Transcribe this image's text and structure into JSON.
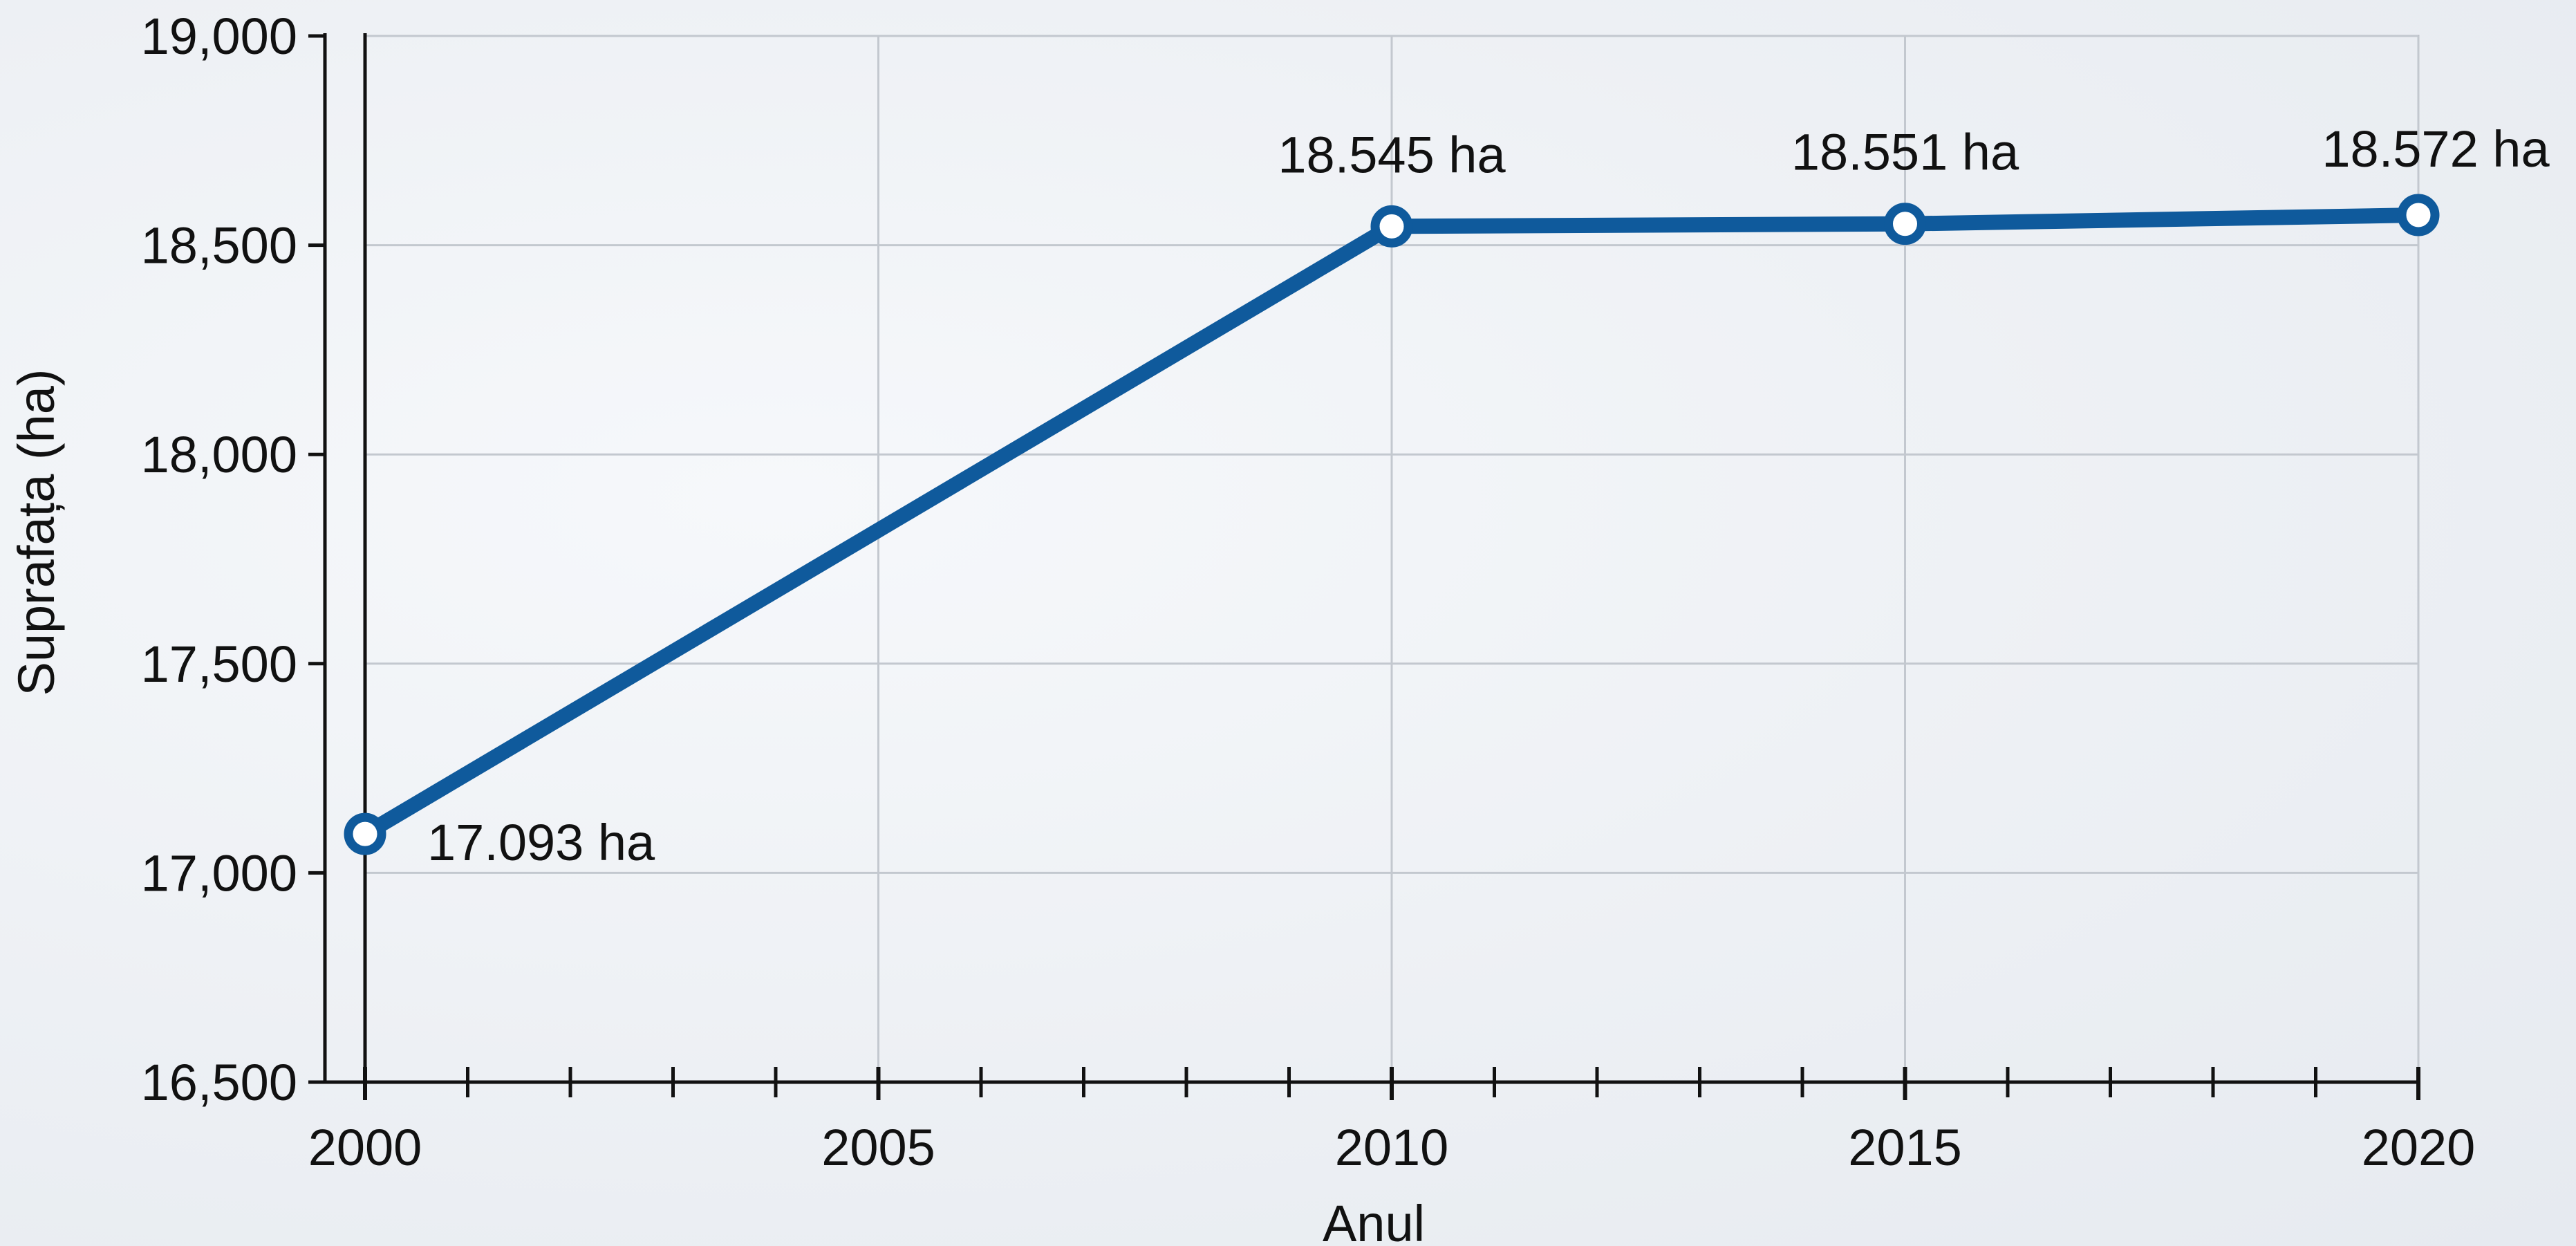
{
  "chart_data": {
    "type": "line",
    "title": "",
    "xlabel": "Anul",
    "ylabel": "Suprafața (ha)",
    "xlim": [
      2000,
      2020
    ],
    "ylim": [
      16500,
      19000
    ],
    "x_ticks": [
      2000,
      2005,
      2010,
      2015,
      2020
    ],
    "x_tick_labels": [
      "2000",
      "2005",
      "2010",
      "2015",
      "2020"
    ],
    "x_minor_step": 1,
    "y_ticks": [
      16500,
      17000,
      17500,
      18000,
      18500,
      19000
    ],
    "y_tick_labels": [
      "16,500",
      "17,000",
      "17,500",
      "18,000",
      "18,500",
      "19,000"
    ],
    "grid": true,
    "series": [
      {
        "x": [
          2000,
          2010,
          2015,
          2020
        ],
        "values": [
          17093,
          18545,
          18551,
          18572
        ],
        "labels": [
          "17.093 ha",
          "18.545 ha",
          "18.551 ha",
          "18.572 ha"
        ],
        "color": "#0f5a9c"
      }
    ]
  }
}
